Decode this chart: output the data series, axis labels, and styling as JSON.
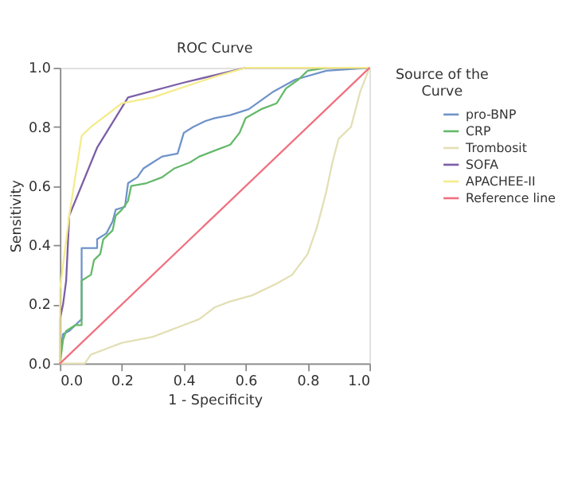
{
  "chart_data": {
    "type": "line",
    "title": "ROC Curve",
    "xlabel": "1 - Specificity",
    "ylabel": "Sensitivity",
    "legend_title": "Source of the Curve",
    "legend": "right",
    "grid": false,
    "marker": "none",
    "line_style": "solid",
    "xlim": [
      0,
      1
    ],
    "ylim": [
      0,
      1
    ],
    "xticks": [
      {
        "value": 0,
        "label": "0.0"
      },
      0.2,
      0.4,
      0.6,
      0.8,
      {
        "value": 1,
        "label": "1.0"
      }
    ],
    "yticks": [
      {
        "value": 0,
        "label": "0.0"
      },
      0.2,
      0.4,
      0.6,
      0.8,
      {
        "value": 1,
        "label": "1.0"
      }
    ],
    "series": [
      {
        "name": "pro-BNP",
        "color": "#6f93c9",
        "x": [
          0,
          0,
          0.01,
          0.03,
          0.05,
          0.07,
          0.07,
          0.12,
          0.12,
          0.15,
          0.17,
          0.18,
          0.21,
          0.22,
          0.25,
          0.27,
          0.3,
          0.33,
          0.38,
          0.4,
          0.43,
          0.47,
          0.5,
          0.55,
          0.61,
          0.69,
          0.76,
          0.86,
          1
        ],
        "values": [
          0,
          0.03,
          0.1,
          0.11,
          0.13,
          0.15,
          0.39,
          0.39,
          0.42,
          0.44,
          0.48,
          0.52,
          0.53,
          0.61,
          0.63,
          0.66,
          0.68,
          0.7,
          0.71,
          0.78,
          0.8,
          0.82,
          0.83,
          0.84,
          0.86,
          0.92,
          0.96,
          0.99,
          1
        ]
      },
      {
        "name": "CRP",
        "color": "#64b96a",
        "x": [
          0,
          0.01,
          0.02,
          0.05,
          0.07,
          0.07,
          0.1,
          0.11,
          0.13,
          0.14,
          0.17,
          0.18,
          0.2,
          0.22,
          0.23,
          0.28,
          0.33,
          0.37,
          0.42,
          0.45,
          0.5,
          0.55,
          0.58,
          0.6,
          0.65,
          0.7,
          0.73,
          0.77,
          0.8,
          0.86,
          1
        ],
        "values": [
          0,
          0.08,
          0.11,
          0.13,
          0.13,
          0.28,
          0.3,
          0.35,
          0.37,
          0.42,
          0.45,
          0.5,
          0.52,
          0.55,
          0.6,
          0.61,
          0.63,
          0.66,
          0.68,
          0.7,
          0.72,
          0.74,
          0.78,
          0.83,
          0.86,
          0.88,
          0.93,
          0.96,
          0.99,
          1,
          1
        ]
      },
      {
        "name": "Trombosit",
        "color": "#e3dfb5",
        "x": [
          0,
          0.08,
          0.1,
          0.15,
          0.2,
          0.3,
          0.4,
          0.45,
          0.5,
          0.55,
          0.62,
          0.7,
          0.75,
          0.8,
          0.83,
          0.86,
          0.88,
          0.9,
          0.94,
          0.97,
          1
        ],
        "values": [
          0,
          0,
          0.03,
          0.05,
          0.07,
          0.09,
          0.13,
          0.15,
          0.19,
          0.21,
          0.23,
          0.27,
          0.3,
          0.37,
          0.46,
          0.58,
          0.68,
          0.76,
          0.8,
          0.92,
          1
        ]
      },
      {
        "name": "SOFA",
        "color": "#7b5ea7",
        "x": [
          0,
          0,
          0.01,
          0.02,
          0.03,
          0.12,
          0.22,
          0.4,
          0.6,
          1
        ],
        "values": [
          0,
          0.15,
          0.2,
          0.28,
          0.5,
          0.73,
          0.9,
          0.95,
          1,
          1
        ]
      },
      {
        "name": "APACHEE-II",
        "color": "#f5eb8c",
        "x": [
          0,
          0,
          0.03,
          0.07,
          0.1,
          0.2,
          0.3,
          0.5,
          0.6,
          1
        ],
        "values": [
          0,
          0.25,
          0.5,
          0.77,
          0.8,
          0.88,
          0.9,
          0.97,
          1,
          1
        ]
      },
      {
        "name": "Reference line",
        "color": "#f07080",
        "x": [
          0,
          1
        ],
        "values": [
          0,
          1
        ]
      }
    ]
  }
}
